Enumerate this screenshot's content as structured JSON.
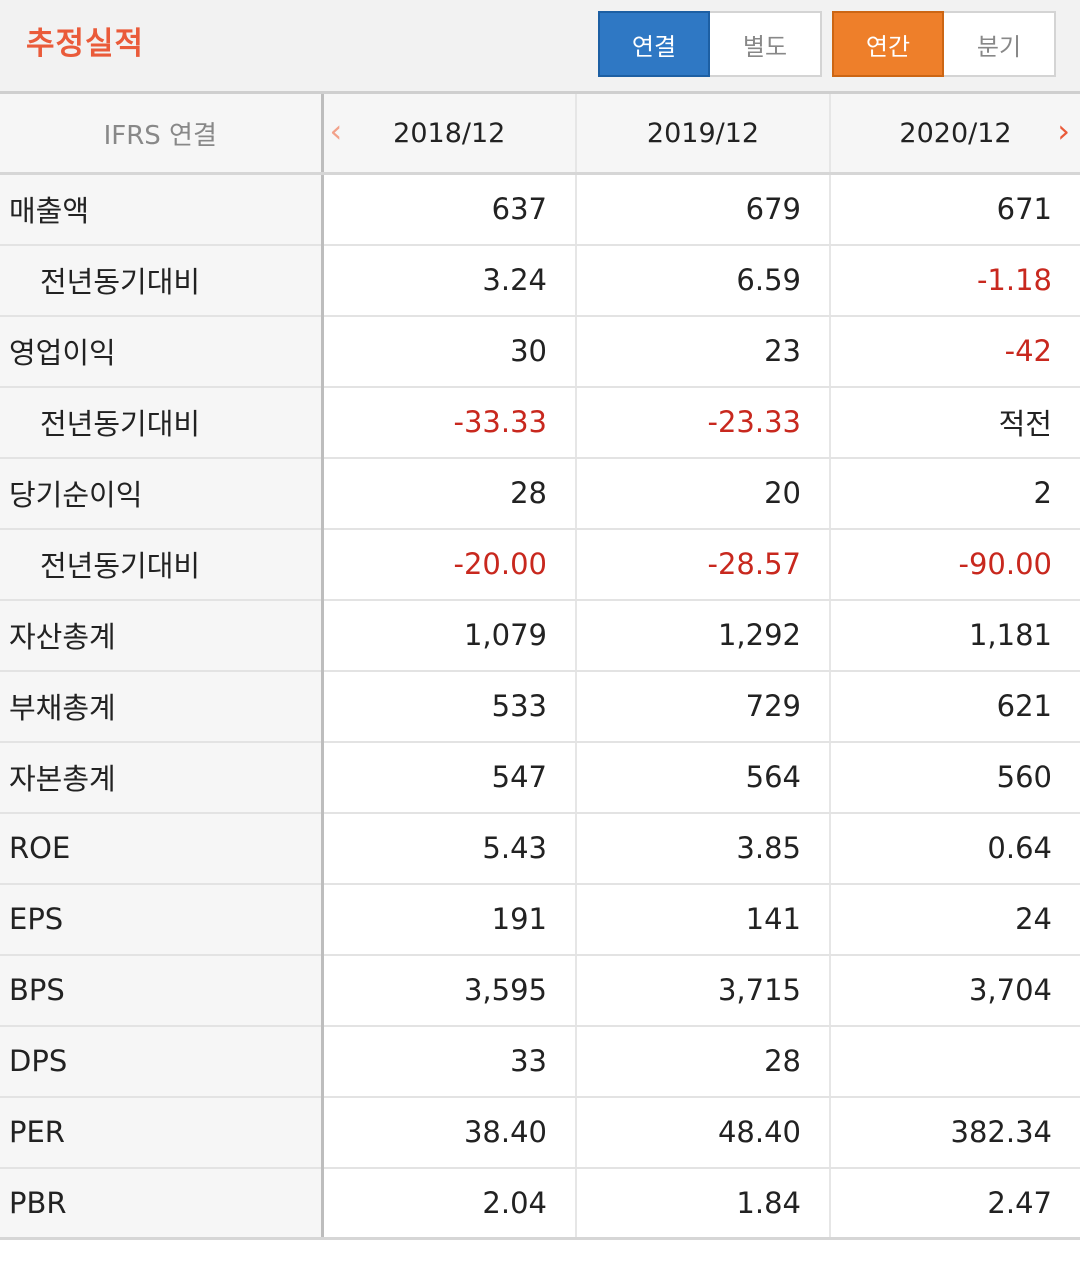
{
  "header": {
    "title": "추정실적",
    "consolidation": {
      "options": [
        "연결",
        "별도"
      ],
      "selected": "연결"
    },
    "period": {
      "options": [
        "연간",
        "분기"
      ],
      "selected": "연간"
    }
  },
  "table": {
    "corner_label": "IFRS 연결",
    "columns": [
      "2018/12",
      "2019/12",
      "2020/12"
    ],
    "rows": [
      {
        "label": "매출액",
        "sub": false,
        "values": [
          "637",
          "679",
          "671"
        ]
      },
      {
        "label": "전년동기대비",
        "sub": true,
        "values": [
          "3.24",
          "6.59",
          "-1.18"
        ]
      },
      {
        "label": "영업이익",
        "sub": false,
        "values": [
          "30",
          "23",
          "-42"
        ]
      },
      {
        "label": "전년동기대비",
        "sub": true,
        "values": [
          "-33.33",
          "-23.33",
          "적전"
        ]
      },
      {
        "label": "당기순이익",
        "sub": false,
        "values": [
          "28",
          "20",
          "2"
        ]
      },
      {
        "label": "전년동기대비",
        "sub": true,
        "values": [
          "-20.00",
          "-28.57",
          "-90.00"
        ]
      },
      {
        "label": "자산총계",
        "sub": false,
        "values": [
          "1,079",
          "1,292",
          "1,181"
        ]
      },
      {
        "label": "부채총계",
        "sub": false,
        "values": [
          "533",
          "729",
          "621"
        ]
      },
      {
        "label": "자본총계",
        "sub": false,
        "values": [
          "547",
          "564",
          "560"
        ]
      },
      {
        "label": "ROE",
        "sub": false,
        "values": [
          "5.43",
          "3.85",
          "0.64"
        ]
      },
      {
        "label": "EPS",
        "sub": false,
        "values": [
          "191",
          "141",
          "24"
        ]
      },
      {
        "label": "BPS",
        "sub": false,
        "values": [
          "3,595",
          "3,715",
          "3,704"
        ]
      },
      {
        "label": "DPS",
        "sub": false,
        "values": [
          "33",
          "28",
          ""
        ]
      },
      {
        "label": "PER",
        "sub": false,
        "values": [
          "38.40",
          "48.40",
          "382.34"
        ]
      },
      {
        "label": "PBR",
        "sub": false,
        "values": [
          "2.04",
          "1.84",
          "2.47"
        ]
      }
    ]
  },
  "colors": {
    "accent": "#ea5b3a",
    "consolidated_on": "#2f78c4",
    "annual_on": "#ee7f2a",
    "negative": "#c8281e"
  }
}
